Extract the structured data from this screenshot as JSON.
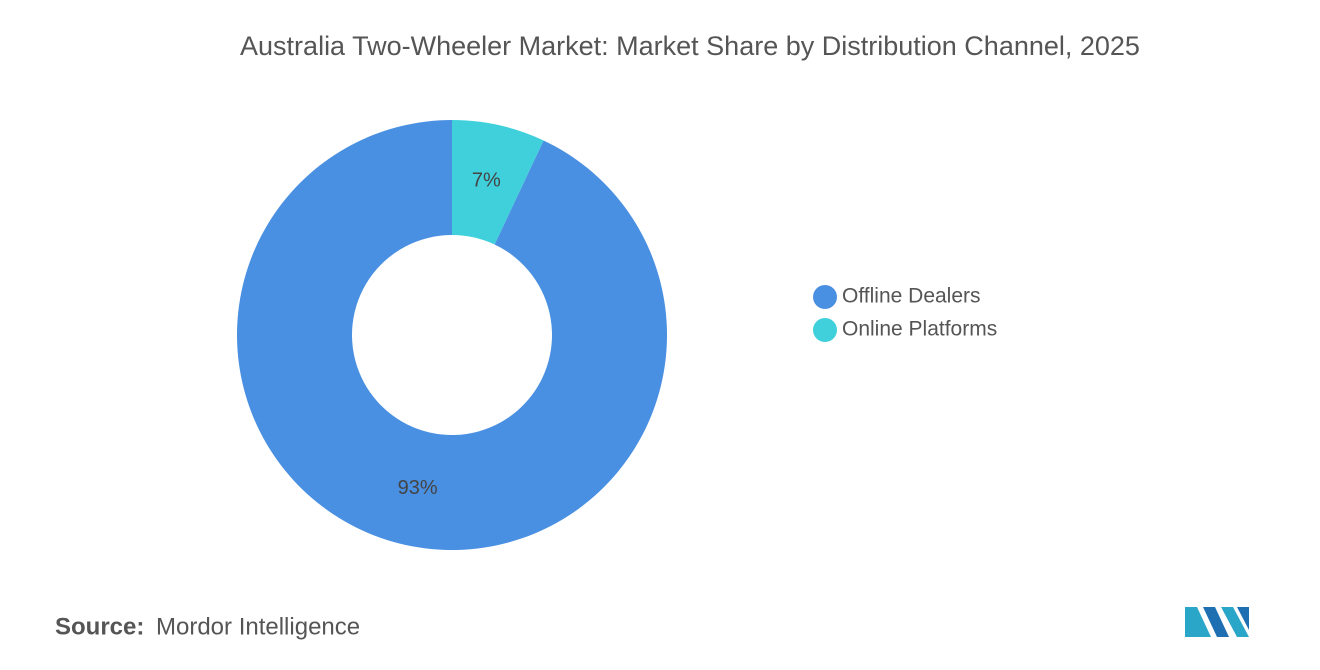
{
  "chart_data": {
    "type": "donut",
    "title": "Australia Two-Wheeler Market: Market Share by Distribution Channel, 2025",
    "categories": [
      "Offline Dealers",
      "Online Platforms"
    ],
    "values": [
      93,
      7
    ],
    "value_labels": [
      "93%",
      "7%"
    ],
    "colors": [
      "#4a90e2",
      "#3fd0db"
    ],
    "legend": "right"
  },
  "source": {
    "label": "Source:",
    "text": "Mordor Intelligence"
  }
}
